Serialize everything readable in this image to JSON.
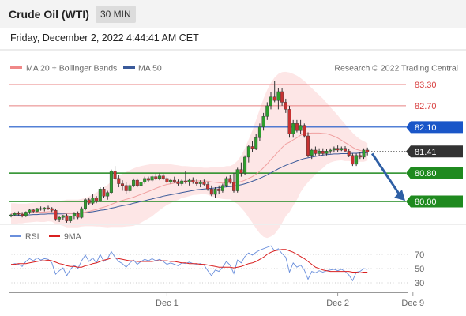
{
  "header": {
    "title": "Crude Oil (WTI)",
    "interval": "30 MIN"
  },
  "timestamp": "Friday, December 2, 2022 4:44:41 AM CET",
  "legend": {
    "ma20": "MA 20 + Bollinger Bands",
    "ma50": "MA 50",
    "rsi": "RSI",
    "ma9": "9MA"
  },
  "copyright": "Research © 2022 Trading Central",
  "colors": {
    "resistance": "#e88080",
    "pivot": "#1a56c8",
    "support": "#1f8a1f",
    "last": "#333333",
    "arrow": "#2e5fa5",
    "bollinger": "#fde2e2",
    "ma50": "#3a5a9a",
    "rsi": "#6a8fdc",
    "ma9": "#d92020",
    "bull": "#2e9e2e",
    "bear": "#c83232"
  },
  "chart_data": {
    "type": "candlestick",
    "ylim": [
      79.4,
      83.8
    ],
    "levels": [
      {
        "name": "resistance-2",
        "value": 83.3,
        "label": "83.30",
        "kind": "resistance"
      },
      {
        "name": "resistance-1",
        "value": 82.7,
        "label": "82.70",
        "kind": "resistance"
      },
      {
        "name": "pivot",
        "value": 82.1,
        "label": "82.10",
        "kind": "pivot"
      },
      {
        "name": "last-price",
        "value": 81.41,
        "label": "81.41",
        "kind": "last"
      },
      {
        "name": "support-1",
        "value": 80.8,
        "label": "80.80",
        "kind": "support"
      },
      {
        "name": "support-2",
        "value": 80.0,
        "label": "80.00",
        "kind": "support"
      }
    ],
    "arrow": {
      "from_index": 96,
      "from_value": 81.35,
      "to_value": 80.02
    },
    "rsi_levels": [
      {
        "value": 70,
        "label": "70"
      },
      {
        "value": 50,
        "label": "50"
      },
      {
        "value": 30,
        "label": "30"
      }
    ],
    "x_ticks": [
      {
        "index": 42,
        "label": "Dec 1"
      },
      {
        "index": 88,
        "label": "Dec 2"
      },
      {
        "index": 104,
        "label": "Dec 9"
      }
    ],
    "candles": [
      [
        79.6,
        79.65,
        79.55,
        79.62
      ],
      [
        79.62,
        79.7,
        79.58,
        79.66
      ],
      [
        79.66,
        79.72,
        79.6,
        79.64
      ],
      [
        79.64,
        79.7,
        79.55,
        79.6
      ],
      [
        79.6,
        79.72,
        79.56,
        79.7
      ],
      [
        79.7,
        79.8,
        79.65,
        79.76
      ],
      [
        79.76,
        79.8,
        79.68,
        79.72
      ],
      [
        79.72,
        79.82,
        79.7,
        79.8
      ],
      [
        79.8,
        79.86,
        79.74,
        79.78
      ],
      [
        79.78,
        79.84,
        79.72,
        79.82
      ],
      [
        79.82,
        79.88,
        79.76,
        79.8
      ],
      [
        79.8,
        79.84,
        79.7,
        79.75
      ],
      [
        79.75,
        79.8,
        79.45,
        79.5
      ],
      [
        79.5,
        79.6,
        79.42,
        79.55
      ],
      [
        79.55,
        79.62,
        79.48,
        79.6
      ],
      [
        79.6,
        79.65,
        79.4,
        79.45
      ],
      [
        79.45,
        79.6,
        79.4,
        79.58
      ],
      [
        79.58,
        79.7,
        79.5,
        79.66
      ],
      [
        79.66,
        79.72,
        79.5,
        79.55
      ],
      [
        79.55,
        79.85,
        79.52,
        79.8
      ],
      [
        79.8,
        80.1,
        79.75,
        80.05
      ],
      [
        80.05,
        80.1,
        79.9,
        79.95
      ],
      [
        79.95,
        80.2,
        79.9,
        80.1
      ],
      [
        80.1,
        80.15,
        79.95,
        80.0
      ],
      [
        80.0,
        80.4,
        79.98,
        80.35
      ],
      [
        80.35,
        80.4,
        80.1,
        80.15
      ],
      [
        80.15,
        80.3,
        80.05,
        80.25
      ],
      [
        80.25,
        80.9,
        80.2,
        80.85
      ],
      [
        80.85,
        81.0,
        80.6,
        80.65
      ],
      [
        80.65,
        80.75,
        80.4,
        80.5
      ],
      [
        80.5,
        80.6,
        80.3,
        80.45
      ],
      [
        80.45,
        80.55,
        80.2,
        80.3
      ],
      [
        80.3,
        80.5,
        80.25,
        80.45
      ],
      [
        80.45,
        80.65,
        80.4,
        80.6
      ],
      [
        80.6,
        80.65,
        80.4,
        80.45
      ],
      [
        80.45,
        80.6,
        80.35,
        80.55
      ],
      [
        80.55,
        80.7,
        80.5,
        80.65
      ],
      [
        80.65,
        80.7,
        80.55,
        80.6
      ],
      [
        80.6,
        80.75,
        80.55,
        80.7
      ],
      [
        80.7,
        80.78,
        80.6,
        80.65
      ],
      [
        80.65,
        80.8,
        80.6,
        80.72
      ],
      [
        80.72,
        80.78,
        80.6,
        80.65
      ],
      [
        80.65,
        80.7,
        80.5,
        80.55
      ],
      [
        80.55,
        80.65,
        80.5,
        80.6
      ],
      [
        80.6,
        80.7,
        80.52,
        80.56
      ],
      [
        80.56,
        80.62,
        80.45,
        80.5
      ],
      [
        80.5,
        80.62,
        80.45,
        80.58
      ],
      [
        80.58,
        80.85,
        80.5,
        80.55
      ],
      [
        80.55,
        80.65,
        80.45,
        80.6
      ],
      [
        80.6,
        80.68,
        80.5,
        80.55
      ],
      [
        80.55,
        80.62,
        80.45,
        80.5
      ],
      [
        80.5,
        80.6,
        80.4,
        80.55
      ],
      [
        80.55,
        80.62,
        80.45,
        80.48
      ],
      [
        80.48,
        80.56,
        80.3,
        80.35
      ],
      [
        80.35,
        80.45,
        80.15,
        80.2
      ],
      [
        80.2,
        80.4,
        80.1,
        80.35
      ],
      [
        80.35,
        80.45,
        80.2,
        80.3
      ],
      [
        80.3,
        80.5,
        80.25,
        80.45
      ],
      [
        80.45,
        80.7,
        80.4,
        80.65
      ],
      [
        80.65,
        80.75,
        80.5,
        80.55
      ],
      [
        80.55,
        80.8,
        80.25,
        80.3
      ],
      [
        80.3,
        80.95,
        80.25,
        80.9
      ],
      [
        80.9,
        81.1,
        80.7,
        80.8
      ],
      [
        80.8,
        81.3,
        80.75,
        81.25
      ],
      [
        81.25,
        81.6,
        81.1,
        81.55
      ],
      [
        81.55,
        81.7,
        81.4,
        81.5
      ],
      [
        81.5,
        81.9,
        81.45,
        81.8
      ],
      [
        81.8,
        82.2,
        81.7,
        82.1
      ],
      [
        82.1,
        82.5,
        82.0,
        82.4
      ],
      [
        82.4,
        82.8,
        82.3,
        82.7
      ],
      [
        82.7,
        83.1,
        82.6,
        82.95
      ],
      [
        82.95,
        83.4,
        82.8,
        82.85
      ],
      [
        82.85,
        83.2,
        82.6,
        83.1
      ],
      [
        83.1,
        83.2,
        82.7,
        82.8
      ],
      [
        82.8,
        82.9,
        82.5,
        82.6
      ],
      [
        82.6,
        82.7,
        81.8,
        81.9
      ],
      [
        81.9,
        82.3,
        81.8,
        82.2
      ],
      [
        82.2,
        82.3,
        81.95,
        82.0
      ],
      [
        82.0,
        82.3,
        81.9,
        82.15
      ],
      [
        82.15,
        82.2,
        81.8,
        81.85
      ],
      [
        81.85,
        81.95,
        81.25,
        81.3
      ],
      [
        81.3,
        81.5,
        81.2,
        81.45
      ],
      [
        81.45,
        81.55,
        81.3,
        81.35
      ],
      [
        81.35,
        81.5,
        81.28,
        81.42
      ],
      [
        81.42,
        81.5,
        81.3,
        81.35
      ],
      [
        81.35,
        81.48,
        81.3,
        81.42
      ],
      [
        81.42,
        81.5,
        81.35,
        81.45
      ],
      [
        81.45,
        81.55,
        81.38,
        81.5
      ],
      [
        81.5,
        81.58,
        81.4,
        81.45
      ],
      [
        81.45,
        81.55,
        81.42,
        81.5
      ],
      [
        81.5,
        81.56,
        81.4,
        81.42
      ],
      [
        81.42,
        81.48,
        81.25,
        81.3
      ],
      [
        81.3,
        81.35,
        81.0,
        81.05
      ],
      [
        81.05,
        81.35,
        81.0,
        81.3
      ],
      [
        81.3,
        81.4,
        81.2,
        81.25
      ],
      [
        81.25,
        81.5,
        81.2,
        81.45
      ],
      [
        81.45,
        81.52,
        81.3,
        81.4
      ]
    ],
    "ma20": [
      79.65,
      79.66,
      79.66,
      79.66,
      79.67,
      79.68,
      79.69,
      79.7,
      79.7,
      79.7,
      79.71,
      79.71,
      79.69,
      79.68,
      79.67,
      79.66,
      79.66,
      79.66,
      79.66,
      79.68,
      79.7,
      79.72,
      79.75,
      79.77,
      79.81,
      79.84,
      79.87,
      79.92,
      79.96,
      80.0,
      80.03,
      80.06,
      80.09,
      80.12,
      80.16,
      80.2,
      80.24,
      80.28,
      80.32,
      80.37,
      80.41,
      80.45,
      80.48,
      80.5,
      80.52,
      80.53,
      80.55,
      80.56,
      80.57,
      80.58,
      80.58,
      80.58,
      80.58,
      80.57,
      80.55,
      80.54,
      80.53,
      80.52,
      80.53,
      80.53,
      80.52,
      80.54,
      80.56,
      80.6,
      80.65,
      80.7,
      80.77,
      80.85,
      80.95,
      81.06,
      81.18,
      81.29,
      81.41,
      81.52,
      81.62,
      81.67,
      81.74,
      81.8,
      81.87,
      81.91,
      81.92,
      81.93,
      81.93,
      81.93,
      81.92,
      81.91,
      81.88,
      81.84,
      81.79,
      81.73,
      81.66,
      81.6,
      81.53,
      81.47,
      81.44,
      81.41,
      81.4
    ],
    "ma50": [
      79.6,
      79.6,
      79.61,
      79.61,
      79.62,
      79.62,
      79.63,
      79.63,
      79.64,
      79.64,
      79.65,
      79.65,
      79.65,
      79.65,
      79.65,
      79.66,
      79.66,
      79.66,
      79.67,
      79.68,
      79.69,
      79.7,
      79.71,
      79.73,
      79.75,
      79.76,
      79.78,
      79.81,
      79.83,
      79.86,
      79.88,
      79.9,
      79.92,
      79.95,
      79.97,
      80.0,
      80.02,
      80.05,
      80.07,
      80.1,
      80.12,
      80.15,
      80.17,
      80.19,
      80.21,
      80.23,
      80.25,
      80.27,
      80.29,
      80.31,
      80.33,
      80.34,
      80.35,
      80.36,
      80.37,
      80.38,
      80.39,
      80.4,
      80.41,
      80.42,
      80.43,
      80.45,
      80.47,
      80.5,
      80.53,
      80.57,
      80.61,
      80.65,
      80.7,
      80.75,
      80.81,
      80.86,
      80.92,
      80.97,
      81.02,
      81.06,
      81.1,
      81.14,
      81.18,
      81.21,
      81.23,
      81.25,
      81.27,
      81.29,
      81.31,
      81.32,
      81.33,
      81.34,
      81.34,
      81.35,
      81.35,
      81.35,
      81.36,
      81.36,
      81.37,
      81.37,
      81.38
    ],
    "bb_upper": [
      79.95,
      79.95,
      79.94,
      79.94,
      79.94,
      79.95,
      79.96,
      79.97,
      79.98,
      79.98,
      79.98,
      79.99,
      80.01,
      80.02,
      80.03,
      80.05,
      80.05,
      80.05,
      80.05,
      80.07,
      80.1,
      80.14,
      80.2,
      80.25,
      80.33,
      80.4,
      80.47,
      80.56,
      80.64,
      80.72,
      80.78,
      80.83,
      80.88,
      80.93,
      80.97,
      81.0,
      81.02,
      81.04,
      81.06,
      81.07,
      81.07,
      81.07,
      81.06,
      81.05,
      81.03,
      81.02,
      81.0,
      81.0,
      80.99,
      80.98,
      80.97,
      80.96,
      80.95,
      80.95,
      80.96,
      80.96,
      80.97,
      80.97,
      81.0,
      81.0,
      81.05,
      81.15,
      81.3,
      81.5,
      81.75,
      82.0,
      82.3,
      82.6,
      82.9,
      83.15,
      83.35,
      83.5,
      83.6,
      83.65,
      83.66,
      83.64,
      83.6,
      83.55,
      83.48,
      83.4,
      83.3,
      83.2,
      83.1,
      83.0,
      82.9,
      82.78,
      82.66,
      82.55,
      82.43,
      82.3,
      82.18,
      82.06,
      81.94,
      81.84,
      81.76,
      81.7,
      81.65
    ],
    "bb_lower": [
      79.35,
      79.36,
      79.38,
      79.38,
      79.4,
      79.41,
      79.42,
      79.43,
      79.42,
      79.42,
      79.44,
      79.43,
      79.37,
      79.34,
      79.31,
      79.27,
      79.27,
      79.27,
      79.27,
      79.29,
      79.3,
      79.3,
      79.3,
      79.29,
      79.29,
      79.28,
      79.27,
      79.28,
      79.28,
      79.28,
      79.28,
      79.29,
      79.3,
      79.31,
      79.35,
      79.4,
      79.46,
      79.52,
      79.58,
      79.67,
      79.75,
      79.83,
      79.9,
      79.95,
      80.01,
      80.04,
      80.1,
      80.12,
      80.15,
      80.18,
      80.19,
      80.2,
      80.21,
      80.19,
      80.14,
      80.12,
      80.09,
      80.07,
      80.06,
      80.06,
      79.99,
      79.93,
      79.82,
      79.7,
      79.55,
      79.4,
      79.24,
      79.1,
      79.0,
      78.97,
      79.01,
      79.08,
      79.22,
      79.39,
      79.58,
      79.7,
      79.88,
      80.05,
      80.26,
      80.42,
      80.54,
      80.66,
      80.76,
      80.86,
      80.94,
      81.04,
      81.1,
      81.13,
      81.15,
      81.16,
      81.14,
      81.14,
      81.12,
      81.1,
      81.12,
      81.12,
      81.15
    ],
    "rsi": [
      55,
      57,
      56,
      53,
      60,
      64,
      61,
      65,
      62,
      64,
      63,
      58,
      42,
      47,
      51,
      40,
      49,
      55,
      50,
      61,
      69,
      60,
      65,
      58,
      70,
      60,
      64,
      74,
      66,
      60,
      57,
      52,
      58,
      62,
      56,
      60,
      63,
      61,
      64,
      61,
      63,
      60,
      56,
      58,
      56,
      54,
      58,
      57,
      59,
      57,
      56,
      57,
      55,
      47,
      40,
      48,
      46,
      52,
      60,
      55,
      43,
      62,
      58,
      67,
      72,
      69,
      73,
      76,
      78,
      80,
      82,
      75,
      78,
      71,
      66,
      45,
      58,
      52,
      55,
      48,
      35,
      46,
      44,
      47,
      45,
      47,
      48,
      49,
      47,
      49,
      46,
      41,
      33,
      45,
      46,
      50,
      49
    ],
    "ma9": [
      56,
      56,
      57,
      57,
      57,
      58,
      59,
      60,
      61,
      61,
      62,
      61,
      59,
      57,
      56,
      54,
      53,
      53,
      52,
      52,
      54,
      55,
      57,
      58,
      60,
      62,
      63,
      65,
      65,
      64,
      63,
      62,
      61,
      61,
      60,
      60,
      60,
      60,
      60,
      61,
      61,
      61,
      61,
      60,
      60,
      59,
      58,
      58,
      57,
      57,
      57,
      56,
      56,
      55,
      54,
      53,
      52,
      52,
      52,
      52,
      51,
      52,
      53,
      55,
      57,
      58,
      60,
      63,
      66,
      70,
      73,
      75,
      76,
      77,
      77,
      75,
      73,
      70,
      67,
      64,
      60,
      56,
      52,
      50,
      48,
      47,
      46,
      46,
      46,
      46,
      46,
      46,
      45,
      45,
      44,
      45,
      45
    ]
  },
  "axis": {
    "x_labels": [
      "Dec 1",
      "Dec 2",
      "Dec 9"
    ]
  }
}
